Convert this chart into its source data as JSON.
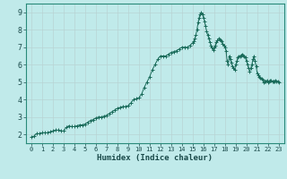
{
  "title": "",
  "xlabel": "Humidex (Indice chaleur)",
  "ylabel": "",
  "xlim": [
    -0.5,
    23.5
  ],
  "ylim": [
    1.5,
    9.5
  ],
  "yticks": [
    2,
    3,
    4,
    5,
    6,
    7,
    8,
    9
  ],
  "xticks": [
    0,
    1,
    2,
    3,
    4,
    5,
    6,
    7,
    8,
    9,
    10,
    11,
    12,
    13,
    14,
    15,
    16,
    17,
    18,
    19,
    20,
    21,
    22,
    23
  ],
  "line_color": "#1a6b5a",
  "bg_color": "#c0eaea",
  "grid_color": "#a8d8d8",
  "x": [
    0,
    0.25,
    0.5,
    0.75,
    1.0,
    1.25,
    1.5,
    1.75,
    2.0,
    2.25,
    2.5,
    2.75,
    3.0,
    3.25,
    3.5,
    3.75,
    4.0,
    4.25,
    4.5,
    4.75,
    5.0,
    5.25,
    5.5,
    5.75,
    6.0,
    6.25,
    6.5,
    6.75,
    7.0,
    7.25,
    7.5,
    7.75,
    8.0,
    8.25,
    8.5,
    8.75,
    9.0,
    9.25,
    9.5,
    9.75,
    10.0,
    10.25,
    10.5,
    10.75,
    11.0,
    11.25,
    11.5,
    11.75,
    12.0,
    12.25,
    12.5,
    12.75,
    13.0,
    13.25,
    13.5,
    13.75,
    14.0,
    14.25,
    14.5,
    14.75,
    15.0,
    15.1,
    15.2,
    15.3,
    15.4,
    15.5,
    15.6,
    15.7,
    15.8,
    15.9,
    16.0,
    16.1,
    16.2,
    16.3,
    16.4,
    16.5,
    16.6,
    16.7,
    16.8,
    16.9,
    17.0,
    17.1,
    17.2,
    17.3,
    17.4,
    17.5,
    17.6,
    17.7,
    17.8,
    17.9,
    18.0,
    18.1,
    18.2,
    18.3,
    18.4,
    18.5,
    18.6,
    18.7,
    18.8,
    18.9,
    19.0,
    19.1,
    19.2,
    19.3,
    19.4,
    19.5,
    19.6,
    19.7,
    19.8,
    19.9,
    20.0,
    20.1,
    20.2,
    20.3,
    20.4,
    20.5,
    20.6,
    20.7,
    20.8,
    20.9,
    21.0,
    21.1,
    21.2,
    21.3,
    21.4,
    21.5,
    21.6,
    21.7,
    21.8,
    21.9,
    22.0,
    22.1,
    22.2,
    22.3,
    22.4,
    22.5,
    22.6,
    22.7,
    22.8,
    22.9,
    23.0
  ],
  "y": [
    1.85,
    1.9,
    2.05,
    2.05,
    2.1,
    2.1,
    2.1,
    2.15,
    2.2,
    2.25,
    2.25,
    2.2,
    2.2,
    2.4,
    2.5,
    2.45,
    2.45,
    2.5,
    2.55,
    2.55,
    2.6,
    2.7,
    2.8,
    2.85,
    2.95,
    3.0,
    3.0,
    3.05,
    3.1,
    3.2,
    3.3,
    3.4,
    3.5,
    3.55,
    3.6,
    3.6,
    3.65,
    3.8,
    4.0,
    4.05,
    4.1,
    4.3,
    4.7,
    5.0,
    5.3,
    5.7,
    6.0,
    6.3,
    6.5,
    6.5,
    6.5,
    6.6,
    6.7,
    6.75,
    6.8,
    6.9,
    7.0,
    7.0,
    7.0,
    7.1,
    7.25,
    7.35,
    7.5,
    7.7,
    8.0,
    8.4,
    8.7,
    8.9,
    9.0,
    8.9,
    8.7,
    8.5,
    8.2,
    7.9,
    7.7,
    7.5,
    7.3,
    7.1,
    7.0,
    6.85,
    7.0,
    7.1,
    7.3,
    7.4,
    7.5,
    7.45,
    7.4,
    7.35,
    7.2,
    7.1,
    7.0,
    6.8,
    6.2,
    6.0,
    6.5,
    6.3,
    6.1,
    5.9,
    5.8,
    5.7,
    6.0,
    6.2,
    6.4,
    6.5,
    6.5,
    6.55,
    6.6,
    6.55,
    6.5,
    6.4,
    6.2,
    6.0,
    5.8,
    5.6,
    5.8,
    6.0,
    6.3,
    6.5,
    6.2,
    5.9,
    5.5,
    5.4,
    5.3,
    5.25,
    5.2,
    5.15,
    5.0,
    5.05,
    5.05,
    5.1,
    5.0,
    5.05,
    5.1,
    5.1,
    5.05,
    5.05,
    5.05,
    5.1,
    5.05,
    5.05,
    5.0
  ]
}
